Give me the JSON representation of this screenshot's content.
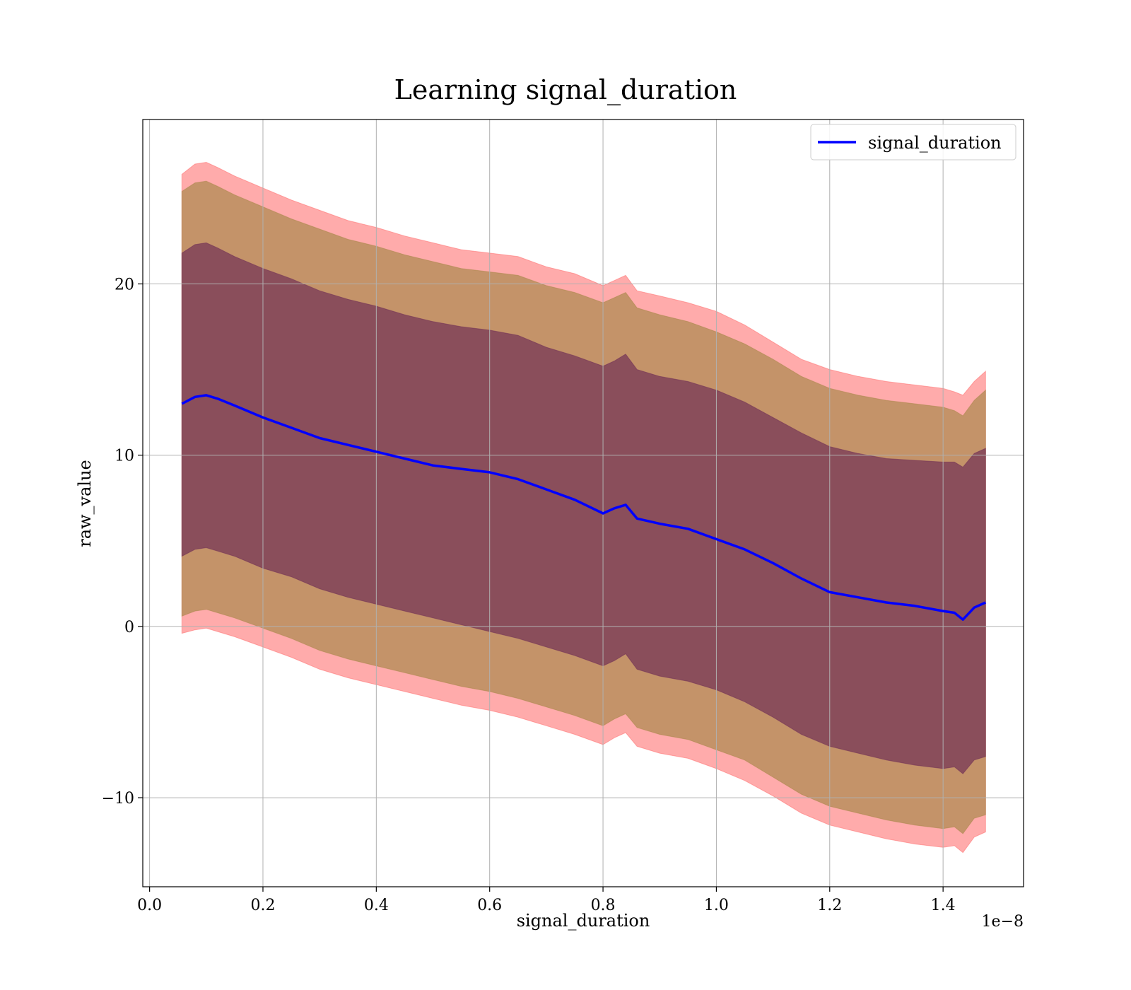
{
  "chart_data": {
    "type": "area",
    "title": "Learning signal_duration",
    "xlabel": "signal_duration",
    "ylabel": "raw_value",
    "x_offset_label": "1e−8",
    "xlim": [
      -0.012,
      1.542
    ],
    "ylim": [
      -15.2,
      29.6
    ],
    "x_ticks": [
      0.0,
      0.2,
      0.4,
      0.6,
      0.8,
      1.0,
      1.2,
      1.4
    ],
    "x_tick_labels": [
      "0.0",
      "0.2",
      "0.4",
      "0.6",
      "0.8",
      "1.0",
      "1.2",
      "1.4"
    ],
    "y_ticks": [
      -10,
      0,
      10,
      20
    ],
    "y_tick_labels": [
      "−10",
      "0",
      "10",
      "20"
    ],
    "grid": true,
    "legend_position": "top-right",
    "series": [
      {
        "name": "signal_duration",
        "color": "#0000ff",
        "x": [
          0.057,
          0.08,
          0.1,
          0.12,
          0.15,
          0.2,
          0.25,
          0.3,
          0.35,
          0.4,
          0.45,
          0.5,
          0.55,
          0.6,
          0.65,
          0.7,
          0.75,
          0.8,
          0.82,
          0.84,
          0.86,
          0.9,
          0.95,
          1.0,
          1.05,
          1.1,
          1.15,
          1.2,
          1.25,
          1.3,
          1.35,
          1.4,
          1.42,
          1.435,
          1.455,
          1.475
        ],
        "y": [
          13.0,
          13.4,
          13.5,
          13.3,
          12.9,
          12.2,
          11.6,
          11.0,
          10.6,
          10.2,
          9.8,
          9.4,
          9.2,
          9.0,
          8.6,
          8.0,
          7.4,
          6.6,
          6.9,
          7.1,
          6.3,
          6.0,
          5.7,
          5.1,
          4.5,
          3.7,
          2.8,
          2.0,
          1.7,
          1.4,
          1.2,
          0.9,
          0.8,
          0.4,
          1.1,
          1.4
        ]
      }
    ],
    "bands": [
      {
        "name": "",
        "color": "#ff6666",
        "x": [
          0.057,
          0.08,
          0.1,
          0.12,
          0.15,
          0.2,
          0.25,
          0.3,
          0.35,
          0.4,
          0.45,
          0.5,
          0.55,
          0.6,
          0.65,
          0.7,
          0.75,
          0.8,
          0.82,
          0.84,
          0.86,
          0.9,
          0.95,
          1.0,
          1.05,
          1.1,
          1.15,
          1.2,
          1.25,
          1.3,
          1.35,
          1.4,
          1.42,
          1.435,
          1.455,
          1.475
        ],
        "upper": [
          26.4,
          27.0,
          27.1,
          26.8,
          26.3,
          25.6,
          24.9,
          24.3,
          23.7,
          23.3,
          22.8,
          22.4,
          22.0,
          21.8,
          21.6,
          21.0,
          20.6,
          19.9,
          20.2,
          20.5,
          19.6,
          19.3,
          18.9,
          18.4,
          17.6,
          16.6,
          15.6,
          15.0,
          14.6,
          14.3,
          14.1,
          13.9,
          13.7,
          13.5,
          14.3,
          14.9
        ],
        "lower": [
          -0.4,
          -0.2,
          -0.1,
          -0.3,
          -0.6,
          -1.2,
          -1.8,
          -2.5,
          -3.0,
          -3.4,
          -3.8,
          -4.2,
          -4.6,
          -4.9,
          -5.3,
          -5.8,
          -6.3,
          -6.9,
          -6.5,
          -6.2,
          -7.0,
          -7.4,
          -7.7,
          -8.3,
          -9.0,
          -9.9,
          -10.9,
          -11.6,
          -12.0,
          -12.4,
          -12.7,
          -12.9,
          -12.8,
          -13.2,
          -12.3,
          -12.0
        ]
      },
      {
        "name": "",
        "color": "#a58545",
        "x": [
          0.057,
          0.08,
          0.1,
          0.12,
          0.15,
          0.2,
          0.25,
          0.3,
          0.35,
          0.4,
          0.45,
          0.5,
          0.55,
          0.6,
          0.65,
          0.7,
          0.75,
          0.8,
          0.82,
          0.84,
          0.86,
          0.9,
          0.95,
          1.0,
          1.05,
          1.1,
          1.15,
          1.2,
          1.25,
          1.3,
          1.35,
          1.4,
          1.42,
          1.435,
          1.455,
          1.475
        ],
        "upper": [
          25.4,
          25.9,
          26.0,
          25.7,
          25.2,
          24.5,
          23.8,
          23.2,
          22.6,
          22.2,
          21.7,
          21.3,
          20.9,
          20.7,
          20.5,
          19.9,
          19.5,
          18.9,
          19.2,
          19.5,
          18.6,
          18.2,
          17.8,
          17.2,
          16.5,
          15.6,
          14.6,
          13.9,
          13.5,
          13.2,
          13.0,
          12.8,
          12.6,
          12.3,
          13.2,
          13.8
        ],
        "lower": [
          0.6,
          0.9,
          1.0,
          0.8,
          0.5,
          -0.1,
          -0.7,
          -1.4,
          -1.9,
          -2.3,
          -2.7,
          -3.1,
          -3.5,
          -3.8,
          -4.2,
          -4.7,
          -5.2,
          -5.8,
          -5.4,
          -5.1,
          -5.9,
          -6.3,
          -6.6,
          -7.2,
          -7.8,
          -8.8,
          -9.8,
          -10.5,
          -10.9,
          -11.3,
          -11.6,
          -11.8,
          -11.7,
          -12.1,
          -11.2,
          -11.0
        ]
      },
      {
        "name": "",
        "color": "#6b2a55",
        "x": [
          0.057,
          0.08,
          0.1,
          0.12,
          0.15,
          0.2,
          0.25,
          0.3,
          0.35,
          0.4,
          0.45,
          0.5,
          0.55,
          0.6,
          0.65,
          0.7,
          0.75,
          0.8,
          0.82,
          0.84,
          0.86,
          0.9,
          0.95,
          1.0,
          1.05,
          1.1,
          1.15,
          1.2,
          1.25,
          1.3,
          1.35,
          1.4,
          1.42,
          1.435,
          1.455,
          1.475
        ],
        "upper": [
          21.8,
          22.3,
          22.4,
          22.1,
          21.6,
          20.9,
          20.3,
          19.6,
          19.1,
          18.7,
          18.2,
          17.8,
          17.5,
          17.3,
          17.0,
          16.3,
          15.8,
          15.2,
          15.5,
          15.9,
          15.0,
          14.6,
          14.3,
          13.8,
          13.1,
          12.2,
          11.3,
          10.5,
          10.1,
          9.8,
          9.7,
          9.6,
          9.6,
          9.3,
          10.1,
          10.4
        ],
        "lower": [
          4.1,
          4.5,
          4.6,
          4.4,
          4.1,
          3.4,
          2.9,
          2.2,
          1.7,
          1.3,
          0.9,
          0.5,
          0.1,
          -0.3,
          -0.7,
          -1.2,
          -1.7,
          -2.3,
          -2.0,
          -1.6,
          -2.5,
          -2.9,
          -3.2,
          -3.7,
          -4.4,
          -5.3,
          -6.3,
          -7.0,
          -7.4,
          -7.8,
          -8.1,
          -8.3,
          -8.2,
          -8.6,
          -7.8,
          -7.6
        ]
      }
    ]
  }
}
